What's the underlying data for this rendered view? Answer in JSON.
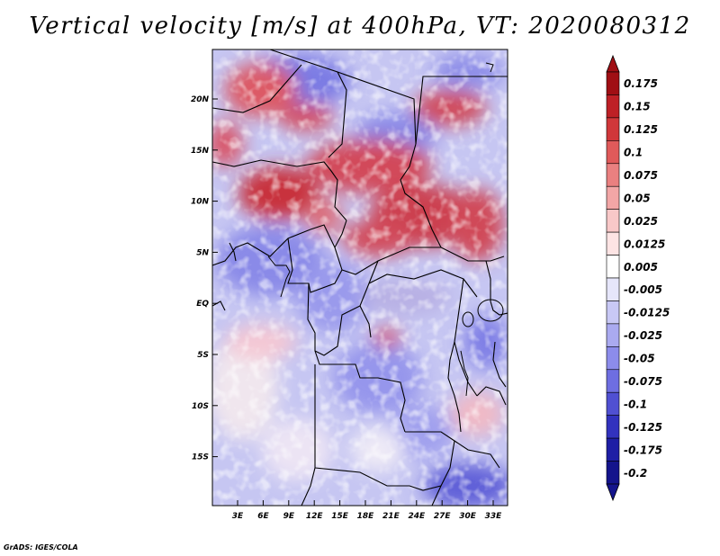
{
  "title": "Vertical velocity [m/s] at 400hPa, VT: 2020080312",
  "credit": "GrADS: IGES/COLA",
  "map": {
    "region": "Central Africa",
    "lat_labels": [
      "20N",
      "15N",
      "10N",
      "5N",
      "EQ",
      "5S",
      "10S",
      "15S"
    ],
    "lon_labels": [
      "3E",
      "6E",
      "9E",
      "12E",
      "15E",
      "18E",
      "21E",
      "24E",
      "27E",
      "30E",
      "33E"
    ]
  },
  "colorbar": {
    "labels": [
      "0.175",
      "0.15",
      "0.125",
      "0.1",
      "0.075",
      "0.05",
      "0.025",
      "0.0125",
      "0.005",
      "-0.005",
      "-0.0125",
      "-0.025",
      "-0.05",
      "-0.075",
      "-0.1",
      "-0.125",
      "-0.175",
      "-0.2"
    ],
    "colors": [
      "#a00f14",
      "#be2026",
      "#d0373a",
      "#e05a5a",
      "#ea8080",
      "#f2a6a6",
      "#f8c8c8",
      "#fde4e4",
      "#ffffff",
      "#e6e6fa",
      "#c8c8f5",
      "#aaaaf0",
      "#8c8ceb",
      "#6e6ee1",
      "#5050d2",
      "#3232be",
      "#1e1ea5",
      "#14148c"
    ]
  }
}
